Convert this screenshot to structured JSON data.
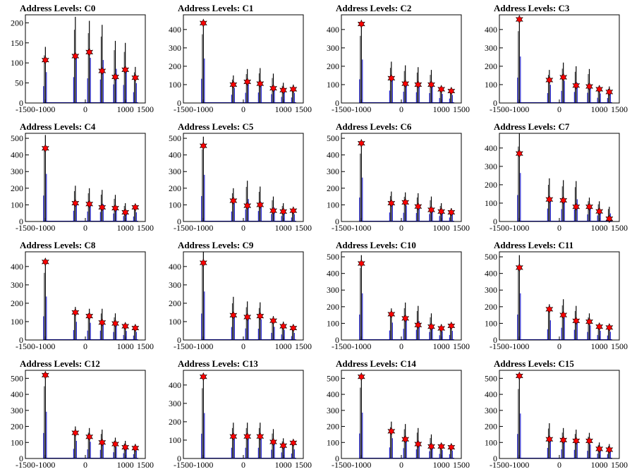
{
  "colors": {
    "trace": "#0000cc",
    "spike": "#000000",
    "marker": "#ff0000",
    "marker_edge": "#000000",
    "frame": "#000000"
  },
  "chart_data": [
    {
      "type": "line",
      "title": "Address Levels: C0",
      "xlim": [
        -1500,
        1500
      ],
      "ylim": [
        0,
        220
      ],
      "yticks": [
        0,
        50,
        100,
        150,
        200
      ],
      "xticks": [
        -1500,
        -1000,
        0,
        1000,
        1500
      ],
      "spikes": [
        [
          -1000,
          140
        ],
        [
          -250,
          215
        ],
        [
          100,
          205
        ],
        [
          420,
          195
        ],
        [
          750,
          155
        ],
        [
          1000,
          150
        ],
        [
          1250,
          90
        ]
      ],
      "markers": [
        [
          -1000,
          107
        ],
        [
          -250,
          117
        ],
        [
          100,
          127
        ],
        [
          420,
          80
        ],
        [
          750,
          65
        ],
        [
          1000,
          83
        ],
        [
          1250,
          63
        ]
      ]
    },
    {
      "type": "line",
      "title": "Address Levels: C1",
      "xlim": [
        -1500,
        1500
      ],
      "ylim": [
        0,
        480
      ],
      "yticks": [
        0,
        100,
        200,
        300,
        400
      ],
      "xticks": [
        -1500,
        -1000,
        0,
        1000,
        1500
      ],
      "spikes": [
        [
          -1000,
          440
        ],
        [
          -250,
          150
        ],
        [
          100,
          185
        ],
        [
          420,
          190
        ],
        [
          750,
          160
        ],
        [
          1000,
          110
        ],
        [
          1250,
          100
        ]
      ],
      "markers": [
        [
          -1000,
          435
        ],
        [
          -250,
          100
        ],
        [
          100,
          115
        ],
        [
          420,
          105
        ],
        [
          750,
          80
        ],
        [
          1000,
          70
        ],
        [
          1250,
          75
        ]
      ]
    },
    {
      "type": "line",
      "title": "Address Levels: C2",
      "xlim": [
        -1500,
        1500
      ],
      "ylim": [
        0,
        480
      ],
      "yticks": [
        0,
        100,
        200,
        300,
        400
      ],
      "xticks": [
        -1500,
        -1000,
        0,
        1000,
        1500
      ],
      "spikes": [
        [
          -1000,
          430
        ],
        [
          -250,
          225
        ],
        [
          100,
          205
        ],
        [
          420,
          195
        ],
        [
          750,
          180
        ],
        [
          1000,
          90
        ],
        [
          1250,
          80
        ]
      ],
      "markers": [
        [
          -1000,
          430
        ],
        [
          -250,
          135
        ],
        [
          100,
          105
        ],
        [
          420,
          100
        ],
        [
          750,
          100
        ],
        [
          1000,
          75
        ],
        [
          1250,
          65
        ]
      ]
    },
    {
      "type": "line",
      "title": "Address Levels: C3",
      "xlim": [
        -1500,
        1500
      ],
      "ylim": [
        0,
        480
      ],
      "yticks": [
        0,
        100,
        200,
        300,
        400
      ],
      "xticks": [
        -1500,
        -1000,
        0,
        1000,
        1500
      ],
      "spikes": [
        [
          -1000,
          460
        ],
        [
          -250,
          180
        ],
        [
          100,
          220
        ],
        [
          420,
          200
        ],
        [
          750,
          185
        ],
        [
          1000,
          95
        ],
        [
          1250,
          90
        ]
      ],
      "markers": [
        [
          -1000,
          455
        ],
        [
          -250,
          125
        ],
        [
          100,
          140
        ],
        [
          420,
          95
        ],
        [
          750,
          90
        ],
        [
          1000,
          75
        ],
        [
          1250,
          60
        ]
      ]
    },
    {
      "type": "line",
      "title": "Address Levels: C4",
      "xlim": [
        -1500,
        1500
      ],
      "ylim": [
        0,
        530
      ],
      "yticks": [
        0,
        100,
        200,
        300,
        400,
        500
      ],
      "xticks": [
        -1500,
        -1000,
        0,
        1000,
        1500
      ],
      "spikes": [
        [
          -1000,
          520
        ],
        [
          -250,
          215
        ],
        [
          100,
          200
        ],
        [
          420,
          190
        ],
        [
          750,
          160
        ],
        [
          1000,
          110
        ],
        [
          1250,
          100
        ]
      ],
      "markers": [
        [
          -1000,
          440
        ],
        [
          -250,
          110
        ],
        [
          100,
          105
        ],
        [
          420,
          85
        ],
        [
          750,
          80
        ],
        [
          1000,
          55
        ],
        [
          1250,
          85
        ]
      ]
    },
    {
      "type": "line",
      "title": "Address Levels: C5",
      "xlim": [
        -1500,
        1500
      ],
      "ylim": [
        0,
        530
      ],
      "yticks": [
        0,
        100,
        200,
        300,
        400,
        500
      ],
      "xticks": [
        -1500,
        -1000,
        0,
        1000,
        1500
      ],
      "spikes": [
        [
          -1000,
          510
        ],
        [
          -250,
          200
        ],
        [
          100,
          245
        ],
        [
          420,
          210
        ],
        [
          750,
          150
        ],
        [
          1000,
          110
        ],
        [
          1250,
          80
        ]
      ],
      "markers": [
        [
          -1000,
          455
        ],
        [
          -250,
          125
        ],
        [
          100,
          95
        ],
        [
          420,
          100
        ],
        [
          750,
          65
        ],
        [
          1000,
          60
        ],
        [
          1250,
          65
        ]
      ]
    },
    {
      "type": "line",
      "title": "Address Levels: C6",
      "xlim": [
        -1500,
        1500
      ],
      "ylim": [
        0,
        530
      ],
      "yticks": [
        0,
        100,
        200,
        300,
        400,
        500
      ],
      "xticks": [
        -1500,
        -1000,
        0,
        1000,
        1500
      ],
      "spikes": [
        [
          -1000,
          480
        ],
        [
          -250,
          180
        ],
        [
          100,
          175
        ],
        [
          420,
          170
        ],
        [
          750,
          150
        ],
        [
          1000,
          110
        ],
        [
          1250,
          80
        ]
      ],
      "markers": [
        [
          -1000,
          470
        ],
        [
          -250,
          110
        ],
        [
          100,
          115
        ],
        [
          420,
          90
        ],
        [
          750,
          70
        ],
        [
          1000,
          60
        ],
        [
          1250,
          55
        ]
      ]
    },
    {
      "type": "line",
      "title": "Address Levels: C7",
      "xlim": [
        -1500,
        1500
      ],
      "ylim": [
        0,
        480
      ],
      "yticks": [
        0,
        100,
        200,
        300,
        400
      ],
      "xticks": [
        -1500,
        -1000,
        0,
        1000,
        1500
      ],
      "spikes": [
        [
          -1000,
          480
        ],
        [
          -250,
          235
        ],
        [
          100,
          225
        ],
        [
          420,
          220
        ],
        [
          750,
          130
        ],
        [
          1000,
          110
        ],
        [
          1250,
          80
        ]
      ],
      "markers": [
        [
          -1000,
          370
        ],
        [
          -250,
          120
        ],
        [
          100,
          115
        ],
        [
          420,
          80
        ],
        [
          750,
          80
        ],
        [
          1000,
          55
        ],
        [
          1250,
          15
        ]
      ]
    },
    {
      "type": "line",
      "title": "Address Levels: C8",
      "xlim": [
        -1500,
        1500
      ],
      "ylim": [
        0,
        480
      ],
      "yticks": [
        0,
        100,
        200,
        300,
        400
      ],
      "xticks": [
        -1500,
        -1000,
        0,
        1000,
        1500
      ],
      "spikes": [
        [
          -1000,
          430
        ],
        [
          -250,
          180
        ],
        [
          100,
          170
        ],
        [
          420,
          170
        ],
        [
          750,
          145
        ],
        [
          1000,
          90
        ],
        [
          1250,
          80
        ]
      ],
      "markers": [
        [
          -1000,
          425
        ],
        [
          -250,
          150
        ],
        [
          100,
          130
        ],
        [
          420,
          95
        ],
        [
          750,
          90
        ],
        [
          1000,
          75
        ],
        [
          1250,
          65
        ]
      ]
    },
    {
      "type": "line",
      "title": "Address Levels: C9",
      "xlim": [
        -1500,
        1500
      ],
      "ylim": [
        0,
        480
      ],
      "yticks": [
        0,
        100,
        200,
        300,
        400
      ],
      "xticks": [
        -1500,
        -1000,
        0,
        1000,
        1500
      ],
      "spikes": [
        [
          -1000,
          480
        ],
        [
          -250,
          235
        ],
        [
          100,
          210
        ],
        [
          420,
          205
        ],
        [
          750,
          130
        ],
        [
          1000,
          100
        ],
        [
          1250,
          70
        ]
      ],
      "markers": [
        [
          -1000,
          420
        ],
        [
          -250,
          135
        ],
        [
          100,
          125
        ],
        [
          420,
          130
        ],
        [
          750,
          105
        ],
        [
          1000,
          75
        ],
        [
          1250,
          65
        ]
      ]
    },
    {
      "type": "line",
      "title": "Address Levels: C10",
      "xlim": [
        -1500,
        1500
      ],
      "ylim": [
        0,
        530
      ],
      "yticks": [
        0,
        100,
        200,
        300,
        400,
        500
      ],
      "xticks": [
        -1500,
        -1000,
        0,
        1000,
        1500
      ],
      "spikes": [
        [
          -1000,
          510
        ],
        [
          -250,
          190
        ],
        [
          100,
          225
        ],
        [
          420,
          205
        ],
        [
          750,
          160
        ],
        [
          1000,
          95
        ],
        [
          1250,
          100
        ]
      ],
      "markers": [
        [
          -1000,
          460
        ],
        [
          -250,
          155
        ],
        [
          100,
          130
        ],
        [
          420,
          90
        ],
        [
          750,
          80
        ],
        [
          1000,
          70
        ],
        [
          1250,
          85
        ]
      ]
    },
    {
      "type": "line",
      "title": "Address Levels: C11",
      "xlim": [
        -1500,
        1500
      ],
      "ylim": [
        0,
        530
      ],
      "yticks": [
        0,
        100,
        200,
        300,
        400,
        500
      ],
      "xticks": [
        -1500,
        -1000,
        0,
        1000,
        1500
      ],
      "spikes": [
        [
          -1000,
          510
        ],
        [
          -250,
          215
        ],
        [
          100,
          245
        ],
        [
          420,
          205
        ],
        [
          750,
          160
        ],
        [
          1000,
          100
        ],
        [
          1250,
          90
        ]
      ],
      "markers": [
        [
          -1000,
          435
        ],
        [
          -250,
          185
        ],
        [
          100,
          150
        ],
        [
          420,
          115
        ],
        [
          750,
          110
        ],
        [
          1000,
          80
        ],
        [
          1250,
          75
        ]
      ]
    },
    {
      "type": "line",
      "title": "Address Levels: C12",
      "xlim": [
        -1500,
        1500
      ],
      "ylim": [
        0,
        550
      ],
      "yticks": [
        0,
        100,
        200,
        300,
        400,
        500
      ],
      "xticks": [
        -1500,
        -1000,
        0,
        1000,
        1500
      ],
      "spikes": [
        [
          -1000,
          530
        ],
        [
          -250,
          200
        ],
        [
          100,
          190
        ],
        [
          420,
          180
        ],
        [
          750,
          130
        ],
        [
          1000,
          110
        ],
        [
          1250,
          90
        ]
      ],
      "markers": [
        [
          -1000,
          520
        ],
        [
          -250,
          160
        ],
        [
          100,
          135
        ],
        [
          420,
          100
        ],
        [
          750,
          90
        ],
        [
          1000,
          70
        ],
        [
          1250,
          65
        ]
      ]
    },
    {
      "type": "line",
      "title": "Address Levels: C13",
      "xlim": [
        -1500,
        1500
      ],
      "ylim": [
        0,
        480
      ],
      "yticks": [
        0,
        100,
        200,
        300,
        400
      ],
      "xticks": [
        -1500,
        -1000,
        0,
        1000,
        1500
      ],
      "spikes": [
        [
          -1000,
          450
        ],
        [
          -250,
          195
        ],
        [
          100,
          195
        ],
        [
          420,
          195
        ],
        [
          750,
          160
        ],
        [
          1000,
          110
        ],
        [
          1250,
          90
        ]
      ],
      "markers": [
        [
          -1000,
          445
        ],
        [
          -250,
          120
        ],
        [
          100,
          120
        ],
        [
          420,
          120
        ],
        [
          750,
          90
        ],
        [
          1000,
          70
        ],
        [
          1250,
          85
        ]
      ]
    },
    {
      "type": "line",
      "title": "Address Levels: C14",
      "xlim": [
        -1500,
        1500
      ],
      "ylim": [
        0,
        550
      ],
      "yticks": [
        0,
        100,
        200,
        300,
        400,
        500
      ],
      "xticks": [
        -1500,
        -1000,
        0,
        1000,
        1500
      ],
      "spikes": [
        [
          -1000,
          520
        ],
        [
          -250,
          230
        ],
        [
          100,
          215
        ],
        [
          420,
          190
        ],
        [
          750,
          150
        ],
        [
          1000,
          95
        ],
        [
          1250,
          90
        ]
      ],
      "markers": [
        [
          -1000,
          510
        ],
        [
          -250,
          170
        ],
        [
          100,
          120
        ],
        [
          420,
          90
        ],
        [
          750,
          75
        ],
        [
          1000,
          75
        ],
        [
          1250,
          70
        ]
      ]
    },
    {
      "type": "line",
      "title": "Address Levels: C15",
      "xlim": [
        -1500,
        1500
      ],
      "ylim": [
        0,
        550
      ],
      "yticks": [
        0,
        100,
        200,
        300,
        400,
        500
      ],
      "xticks": [
        -1500,
        -1000,
        0,
        1000,
        1500
      ],
      "spikes": [
        [
          -1000,
          510
        ],
        [
          -250,
          220
        ],
        [
          100,
          190
        ],
        [
          420,
          180
        ],
        [
          750,
          160
        ],
        [
          1000,
          100
        ],
        [
          1250,
          90
        ]
      ],
      "markers": [
        [
          -1000,
          515
        ],
        [
          -250,
          120
        ],
        [
          100,
          115
        ],
        [
          420,
          110
        ],
        [
          750,
          110
        ],
        [
          1000,
          60
        ],
        [
          1250,
          55
        ]
      ]
    }
  ]
}
